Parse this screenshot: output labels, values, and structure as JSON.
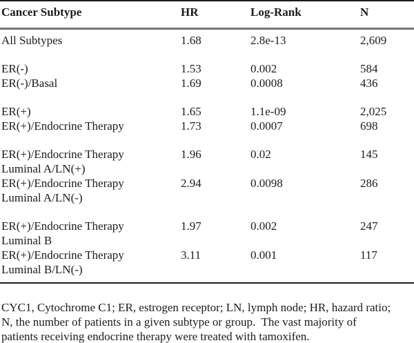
{
  "table": {
    "headers": {
      "subtype": "Cancer Subtype",
      "hr": "HR",
      "logrank": "Log-Rank",
      "n": "N"
    },
    "rows": [
      {
        "label": [
          "All Subtypes"
        ],
        "hr": "1.68",
        "logrank": "2.8e-13",
        "n": "2,609",
        "gap": false
      },
      {
        "label": [
          "ER(-)"
        ],
        "hr": "1.53",
        "logrank": "0.002",
        "n": "584",
        "gap": true
      },
      {
        "label": [
          "ER(-)/Basal"
        ],
        "hr": "1.69",
        "logrank": "0.0008",
        "n": "436",
        "gap": false
      },
      {
        "label": [
          "ER(+)"
        ],
        "hr": "1.65",
        "logrank": "1.1e-09",
        "n": "2,025",
        "gap": true
      },
      {
        "label": [
          "ER(+)/Endocrine Therapy"
        ],
        "hr": "1.73",
        "logrank": "0.0007",
        "n": "698",
        "gap": false
      },
      {
        "label": [
          "ER(+)/Endocrine Therapy",
          "Luminal A/LN(+)"
        ],
        "hr": "1.96",
        "logrank": "0.02",
        "n": "145",
        "gap": true
      },
      {
        "label": [
          "ER(+)/Endocrine Therapy",
          "Luminal A/LN(-)"
        ],
        "hr": "2.94",
        "logrank": "0.0098",
        "n": "286",
        "gap": false
      },
      {
        "label": [
          "ER(+)/Endocrine Therapy",
          "Luminal B"
        ],
        "hr": "1.97",
        "logrank": "0.002",
        "n": "247",
        "gap": true
      },
      {
        "label": [
          "ER(+)/Endocrine Therapy",
          "Luminal B/LN(-)"
        ],
        "hr": "3.11",
        "logrank": "0.001",
        "n": "117",
        "gap": false
      }
    ],
    "footnote_lines": [
      "CYC1, Cytochrome C1; ER, estrogen receptor; LN, lymph node; HR, hazard ratio;",
      "N, the number of patients in a given subtype or group.  The vast majority of",
      "patients receiving endocrine therapy were treated with tamoxifen."
    ]
  },
  "colors": {
    "text": "#1b1b1b",
    "heavy_rule": "#1c1c1c",
    "header_rule": "#767676",
    "background": "#ffffff"
  }
}
